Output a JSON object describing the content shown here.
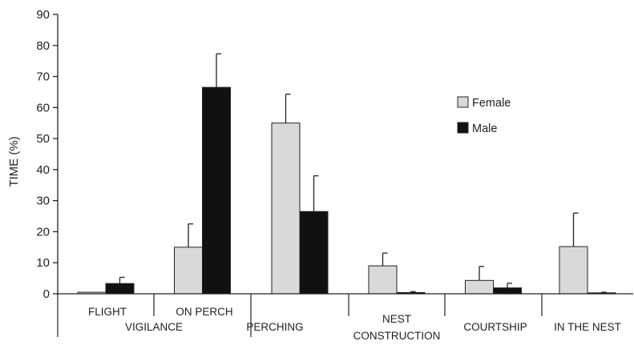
{
  "chart_data": {
    "type": "bar",
    "title": "",
    "xlabel": "",
    "ylabel": "TIME (%)",
    "ylim": [
      0,
      90
    ],
    "yticks": [
      0,
      10,
      20,
      30,
      40,
      50,
      60,
      70,
      80,
      90
    ],
    "grid": false,
    "legend_position": "right",
    "error_bars": true,
    "categories": [
      "FLIGHT",
      "ON PERCH",
      "PERCHING",
      "NEST CONSTRUCTION",
      "COURTSHIP",
      "IN THE NEST"
    ],
    "category_labels": [
      [
        "FLIGHT"
      ],
      [
        "ON PERCH"
      ],
      [
        "PERCHING"
      ],
      [
        "NEST",
        "CONSTRUCTION"
      ],
      [
        "COURTSHIP"
      ],
      [
        "IN THE NEST"
      ]
    ],
    "category_groups": [
      {
        "label": "VIGILANCE",
        "categories": [
          "FLIGHT",
          "ON PERCH"
        ]
      }
    ],
    "series": [
      {
        "name": "Female",
        "color": "#d9d9d9",
        "values": [
          0.5,
          15,
          55,
          9,
          4.3,
          15.2
        ],
        "errors": [
          0,
          7.5,
          9.3,
          4.1,
          4.5,
          10.8
        ]
      },
      {
        "name": "Male",
        "color": "#111111",
        "values": [
          3.3,
          66.5,
          26.5,
          0.4,
          1.9,
          0.3
        ],
        "errors": [
          2.0,
          10.8,
          11.5,
          0.3,
          1.5,
          0.2
        ]
      }
    ]
  }
}
